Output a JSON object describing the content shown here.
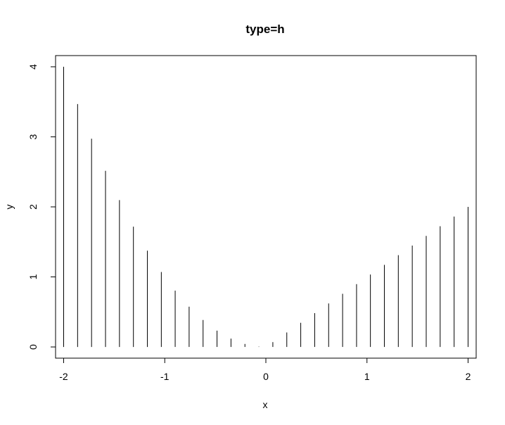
{
  "chart_data": {
    "type": "bar",
    "title": "type=h",
    "xlabel": "x",
    "ylabel": "y",
    "xlim": [
      -2.08,
      2.08
    ],
    "ylim": [
      -0.16,
      4.16
    ],
    "grid": false,
    "legend": "none",
    "x_ticks": [
      -2,
      -1,
      0,
      1,
      2
    ],
    "x_tick_labels": [
      "-2",
      "-1",
      "0",
      "1",
      "2"
    ],
    "y_ticks": [
      0,
      1,
      2,
      3,
      4
    ],
    "y_tick_labels": [
      "0",
      "1",
      "2",
      "3",
      "4"
    ],
    "x": [
      -2.0,
      -1.862,
      -1.724,
      -1.586,
      -1.448,
      -1.31,
      -1.172,
      -1.034,
      -0.897,
      -0.759,
      -0.621,
      -0.483,
      -0.345,
      -0.207,
      -0.069,
      0.069,
      0.207,
      0.345,
      0.483,
      0.621,
      0.759,
      0.897,
      1.034,
      1.172,
      1.31,
      1.448,
      1.586,
      1.724,
      1.862,
      2.0
    ],
    "values": [
      4.0,
      3.468,
      2.973,
      2.515,
      2.097,
      1.717,
      1.374,
      1.07,
      0.804,
      0.575,
      0.385,
      0.233,
      0.119,
      0.043,
      0.005,
      0.069,
      0.207,
      0.345,
      0.483,
      0.621,
      0.759,
      0.897,
      1.034,
      1.172,
      1.31,
      1.448,
      1.586,
      1.724,
      1.862,
      2.0
    ],
    "line_color": "#000000"
  }
}
